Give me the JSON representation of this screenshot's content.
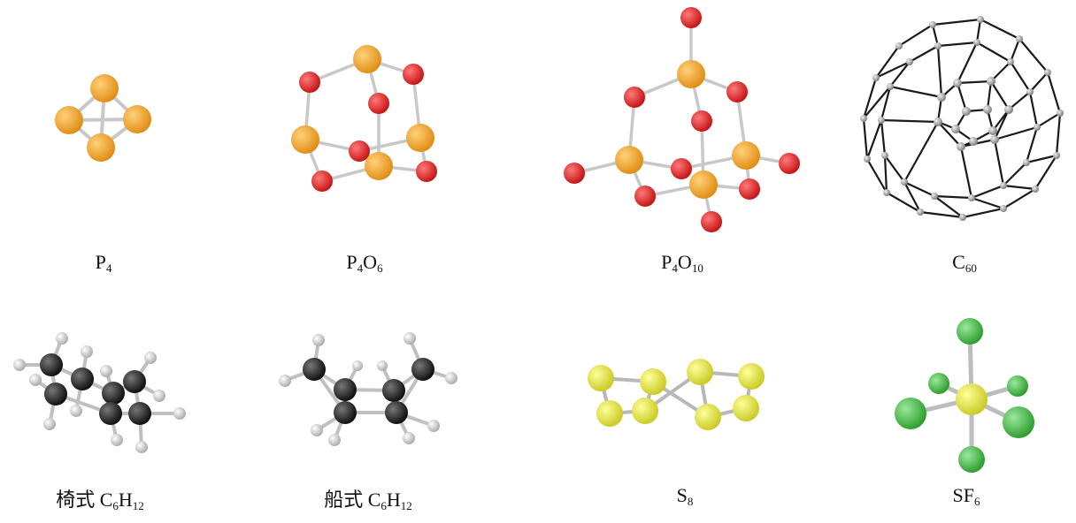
{
  "figure": {
    "molecules": [
      {
        "id": "p4",
        "formula": {
          "el1": "P",
          "n1": "4"
        }
      },
      {
        "id": "p4o6",
        "formula": {
          "el1": "P",
          "n1": "4",
          "el2": "O",
          "n2": "6"
        }
      },
      {
        "id": "p4o10",
        "formula": {
          "el1": "P",
          "n1": "4",
          "el2": "O",
          "n2": "10"
        }
      },
      {
        "id": "c60",
        "formula": {
          "el1": "C",
          "n1": "60"
        }
      },
      {
        "id": "chair",
        "prefix": "椅式",
        "formula": {
          "el1": "C",
          "n1": "6",
          "el2": "H",
          "n2": "12"
        }
      },
      {
        "id": "boat",
        "prefix": "船式",
        "formula": {
          "el1": "C",
          "n1": "6",
          "el2": "H",
          "n2": "12"
        }
      },
      {
        "id": "s8",
        "formula": {
          "el1": "S",
          "n1": "8"
        }
      },
      {
        "id": "sf6",
        "formula": {
          "el1": "SF",
          "n1": "6"
        }
      }
    ]
  },
  "colors": {
    "phosphorus": "#f0a030",
    "oxygen": "#dd2020",
    "carbon_black": "#1a1a1a",
    "hydrogen": "#e6e6e6",
    "sulfur": "#e8e838",
    "fluorine": "#3fb53f",
    "c60_atom": "#aaaaaa",
    "bond": "#c8c8c8"
  }
}
